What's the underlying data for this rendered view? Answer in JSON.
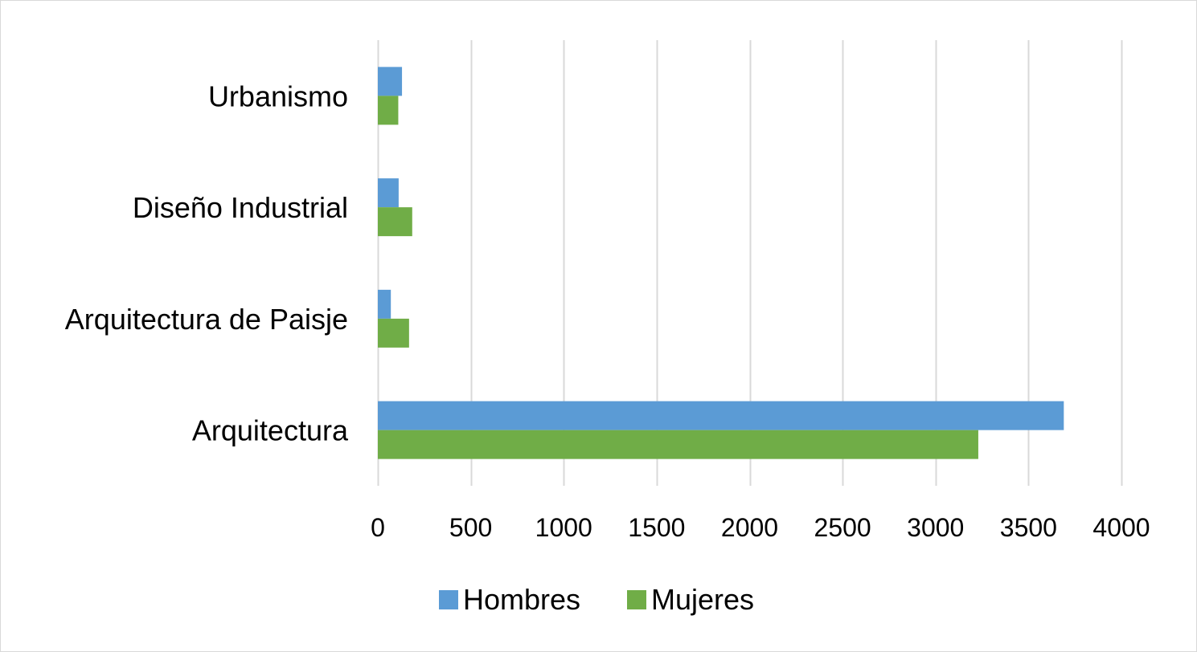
{
  "chart_data": {
    "type": "bar",
    "orientation": "horizontal",
    "categories": [
      "Urbanismo",
      "Diseño Industrial",
      "Arquitectura de Paisje",
      "Arquitectura"
    ],
    "series": [
      {
        "name": "Hombres",
        "color": "#5b9bd5",
        "values": [
          130,
          112,
          70,
          3690
        ]
      },
      {
        "name": "Mujeres",
        "color": "#70ad47",
        "values": [
          110,
          185,
          168,
          3230
        ]
      }
    ],
    "xlim": [
      0,
      4000
    ],
    "xticks": [
      "0",
      "500",
      "1000",
      "1500",
      "2000",
      "2500",
      "3000",
      "3500",
      "4000"
    ],
    "grid": true,
    "legend_position": "bottom"
  }
}
